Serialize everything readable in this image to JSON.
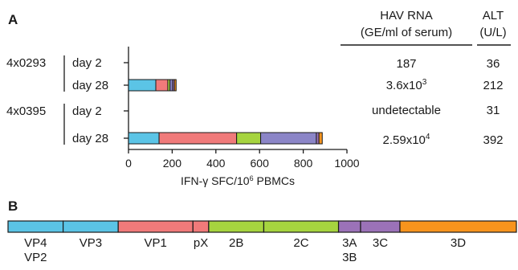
{
  "panels": {
    "a_label": "A",
    "b_label": "B"
  },
  "table": {
    "hav_header_line1": "HAV RNA",
    "hav_header_line2": "(GE/ml of serum)",
    "alt_header_line1": "ALT",
    "alt_header_line2": "(U/L)",
    "rows": [
      {
        "hav_base": "187",
        "hav_exp": "",
        "alt": "36"
      },
      {
        "hav_base": "3.6x10",
        "hav_exp": "3",
        "alt": "212"
      },
      {
        "hav_base": "undetectable",
        "hav_exp": "",
        "alt": "31"
      },
      {
        "hav_base": "2.59x10",
        "hav_exp": "4",
        "alt": "392"
      }
    ]
  },
  "chart_data": {
    "type": "bar",
    "orientation": "horizontal",
    "stacked": true,
    "title": "",
    "xlabel_prefix": "IFN-γ SFC/10",
    "xlabel_sup": "6",
    "xlabel_suffix": " PBMCs",
    "xlim": [
      0,
      1000
    ],
    "xticks": [
      0,
      200,
      400,
      600,
      800,
      1000
    ],
    "groups": [
      {
        "name": "4x0293",
        "rows": [
          "day 2",
          "day 28"
        ]
      },
      {
        "name": "4x0395",
        "rows": [
          "day 2",
          "day 28"
        ]
      }
    ],
    "series": [
      {
        "name": "VP4-VP2-VP3",
        "color": "#5bc4e6",
        "values": [
          0,
          125,
          0,
          140
        ]
      },
      {
        "name": "VP1-pX",
        "color": "#f07a7a",
        "values": [
          0,
          55,
          0,
          355
        ]
      },
      {
        "name": "2B",
        "color": "#a6d43f",
        "values": [
          0,
          10,
          0,
          110
        ]
      },
      {
        "name": "2C",
        "color": "#8b85c7",
        "values": [
          0,
          12,
          0,
          255
        ]
      },
      {
        "name": "3A-3B-3C",
        "color": "#9b72b8",
        "values": [
          0,
          8,
          0,
          12
        ]
      },
      {
        "name": "3D",
        "color": "#f7941d",
        "values": [
          0,
          8,
          0,
          15
        ]
      }
    ]
  },
  "genome": {
    "segments": [
      {
        "label": "VP4",
        "label2": "VP2",
        "color": "#5bc4e6"
      },
      {
        "label": "VP3",
        "label2": "",
        "color": "#5bc4e6"
      },
      {
        "label": "VP1",
        "label2": "",
        "color": "#f07a7a"
      },
      {
        "label": "pX",
        "label2": "",
        "color": "#f07a7a"
      },
      {
        "label": "2B",
        "label2": "",
        "color": "#a6d43f"
      },
      {
        "label": "2C",
        "label2": "",
        "color": "#a6d43f"
      },
      {
        "label": "3A",
        "label2": "3B",
        "color": "#9b72b8"
      },
      {
        "label": "3C",
        "label2": "",
        "color": "#9b72b8"
      },
      {
        "label": "3D",
        "label2": "",
        "color": "#f7941d"
      }
    ]
  }
}
